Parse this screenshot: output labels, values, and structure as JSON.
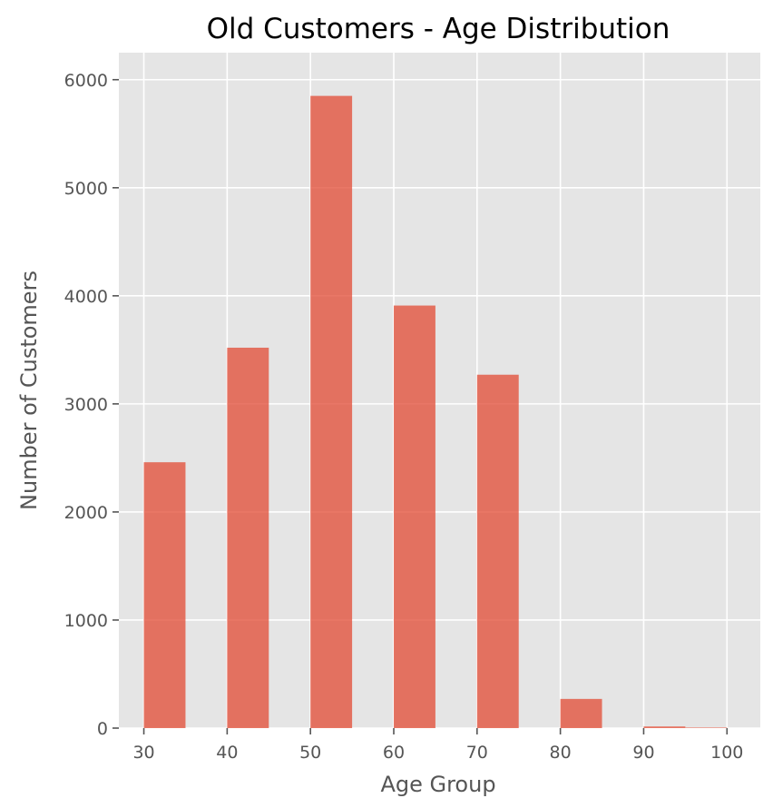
{
  "chart_data": {
    "type": "bar",
    "title": "Old Customers - Age Distribution",
    "xlabel": "Age Group",
    "ylabel": "Number of Customers",
    "x_ticks": [
      30,
      40,
      50,
      60,
      70,
      80,
      90,
      100
    ],
    "y_ticks": [
      0,
      1000,
      2000,
      3000,
      4000,
      5000,
      6000
    ],
    "xlim": [
      27,
      104
    ],
    "ylim": [
      0,
      6250
    ],
    "bin_width": 5,
    "bins": [
      {
        "start": 30,
        "value": 2460
      },
      {
        "start": 40,
        "value": 3520
      },
      {
        "start": 50,
        "value": 5850
      },
      {
        "start": 60,
        "value": 3910
      },
      {
        "start": 70,
        "value": 3270
      },
      {
        "start": 80,
        "value": 270
      },
      {
        "start": 90,
        "value": 15
      },
      {
        "start": 95,
        "value": 5
      }
    ],
    "grid": true,
    "colors": {
      "bar": "#e24a33",
      "plot_background": "#e5e5e5",
      "grid": "#ffffff"
    }
  }
}
